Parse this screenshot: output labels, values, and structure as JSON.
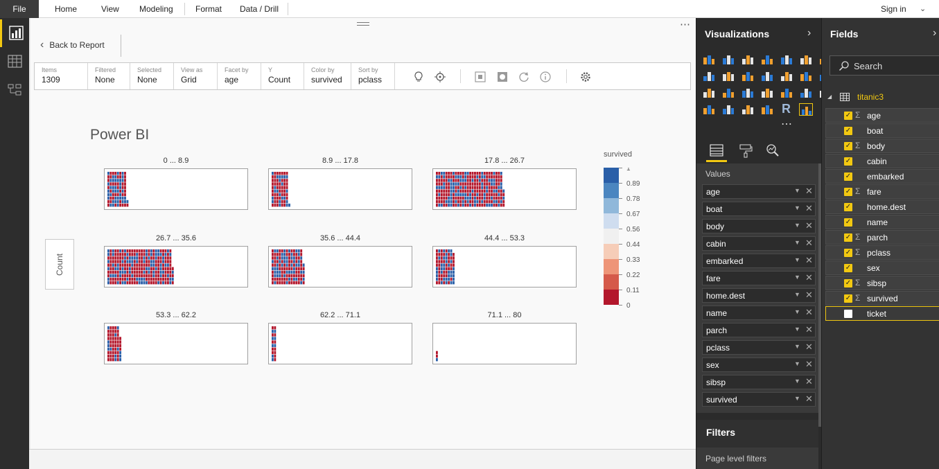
{
  "ribbon": {
    "file": "File",
    "tabs": [
      "Home",
      "View",
      "Modeling",
      "Format",
      "Data / Drill"
    ],
    "signin": "Sign in"
  },
  "report": {
    "back_label": "Back to Report",
    "props": [
      {
        "label": "Items",
        "value": "1309"
      },
      {
        "label": "Filtered",
        "value": "None"
      },
      {
        "label": "Selected",
        "value": "None"
      },
      {
        "label": "View as",
        "value": "Grid"
      },
      {
        "label": "Facet by",
        "value": "age"
      },
      {
        "label": "Y",
        "value": "Count"
      },
      {
        "label": "Color by",
        "value": "survived"
      },
      {
        "label": "Sort by",
        "value": "pclass"
      }
    ],
    "tool_icons": [
      "lightbulb-icon",
      "locate-icon",
      "select-icon",
      "frame-icon",
      "refresh-icon",
      "info-icon",
      "settings-icon"
    ]
  },
  "chart_data": {
    "type": "facet-grid",
    "title": "Power BI",
    "ylabel": "Count",
    "facet_by": "age",
    "facets": [
      {
        "label": "0 ... 8.9",
        "items": 82
      },
      {
        "label": "8.9 ... 17.8",
        "items": 71
      },
      {
        "label": "17.8 ... 26.7",
        "items": 285
      },
      {
        "label": "26.7 ... 35.6",
        "items": 275
      },
      {
        "label": "35.6 ... 44.4",
        "items": 136
      },
      {
        "label": "44.4 ... 53.3",
        "items": 79
      },
      {
        "label": "53.3 ... 62.2",
        "items": 57
      },
      {
        "label": "62.2 ... 71.1",
        "items": 20
      },
      {
        "label": "71.1 ... 80",
        "items": 3
      }
    ],
    "legend": {
      "title": "survived",
      "ticks": [
        "1",
        "0.89",
        "0.78",
        "0.67",
        "0.56",
        "0.44",
        "0.33",
        "0.22",
        "0.11",
        "0"
      ],
      "colors": [
        "#2a5fa8",
        "#4b86c0",
        "#90b8da",
        "#cfddef",
        "#f0f0f0",
        "#f6cdb8",
        "#ee9578",
        "#d55a4a",
        "#b3172c"
      ]
    }
  },
  "visualizations": {
    "title": "Visualizations",
    "values_label": "Values",
    "wells": [
      "age",
      "boat",
      "body",
      "cabin",
      "embarked",
      "fare",
      "home.dest",
      "name",
      "parch",
      "pclass",
      "sex",
      "sibsp",
      "survived"
    ],
    "filters_title": "Filters",
    "page_filters": "Page level filters"
  },
  "fields": {
    "title": "Fields",
    "search_placeholder": "Search",
    "table_name": "titanic3",
    "items": [
      {
        "name": "age",
        "sigma": true,
        "checked": true
      },
      {
        "name": "boat",
        "sigma": false,
        "checked": true
      },
      {
        "name": "body",
        "sigma": true,
        "checked": true
      },
      {
        "name": "cabin",
        "sigma": false,
        "checked": true
      },
      {
        "name": "embarked",
        "sigma": false,
        "checked": true
      },
      {
        "name": "fare",
        "sigma": true,
        "checked": true
      },
      {
        "name": "home.dest",
        "sigma": false,
        "checked": true
      },
      {
        "name": "name",
        "sigma": false,
        "checked": true
      },
      {
        "name": "parch",
        "sigma": true,
        "checked": true
      },
      {
        "name": "pclass",
        "sigma": true,
        "checked": true
      },
      {
        "name": "sex",
        "sigma": false,
        "checked": true
      },
      {
        "name": "sibsp",
        "sigma": true,
        "checked": true
      },
      {
        "name": "survived",
        "sigma": true,
        "checked": true
      },
      {
        "name": "ticket",
        "sigma": false,
        "checked": false
      }
    ]
  },
  "colors": {
    "accent": "#f2c811",
    "survived_high": "#2a5fa8",
    "survived_low": "#b3172c"
  }
}
